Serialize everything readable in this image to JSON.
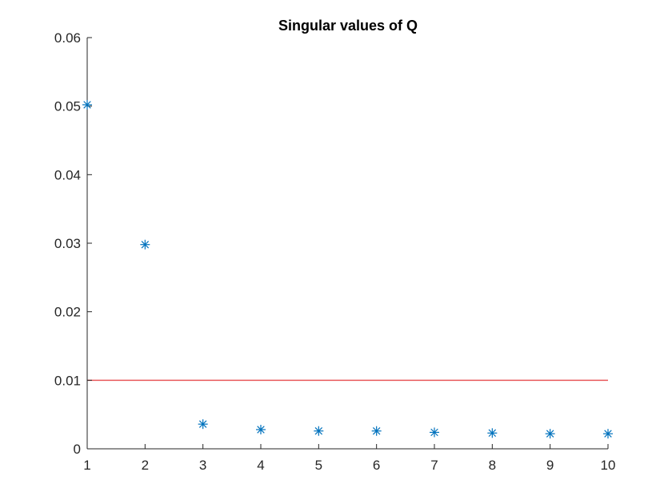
{
  "chart_data": {
    "type": "scatter",
    "title": "Singular values of Q",
    "xlabel": "",
    "ylabel": "",
    "xlim": [
      1,
      10
    ],
    "ylim": [
      0,
      0.06
    ],
    "x_ticks": [
      "1",
      "2",
      "3",
      "4",
      "5",
      "6",
      "7",
      "8",
      "9",
      "10"
    ],
    "y_ticks": [
      "0",
      "0.01",
      "0.02",
      "0.03",
      "0.04",
      "0.05",
      "0.06"
    ],
    "grid": false,
    "marker": "asterisk",
    "marker_color": "#0072BD",
    "series": [
      {
        "x": [
          1,
          2,
          3,
          4,
          5,
          6,
          7,
          8,
          9,
          10
        ],
        "values": [
          0.0502,
          0.0298,
          0.0036,
          0.0028,
          0.0026,
          0.0026,
          0.0024,
          0.0023,
          0.0022,
          0.0022
        ]
      }
    ],
    "threshold": {
      "y": 0.01,
      "x_range": [
        1,
        10
      ],
      "color": "#E8585A"
    }
  }
}
